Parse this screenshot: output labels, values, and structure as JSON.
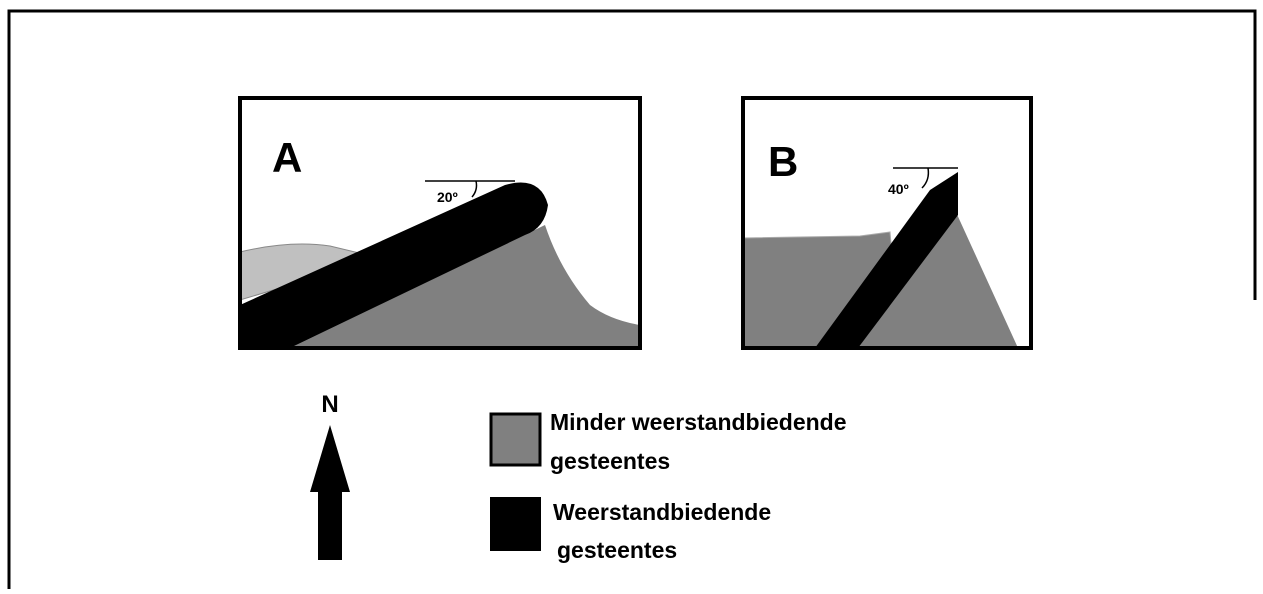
{
  "panels": [
    {
      "label": "A",
      "angle": "20º"
    },
    {
      "label": "B",
      "angle": "40º"
    }
  ],
  "north": "N",
  "legend": [
    {
      "lines": [
        "Minder weerstandbiedende",
        "gesteentes"
      ]
    },
    {
      "lines": [
        "Weerstandbiedende",
        "gesteentes"
      ]
    }
  ]
}
